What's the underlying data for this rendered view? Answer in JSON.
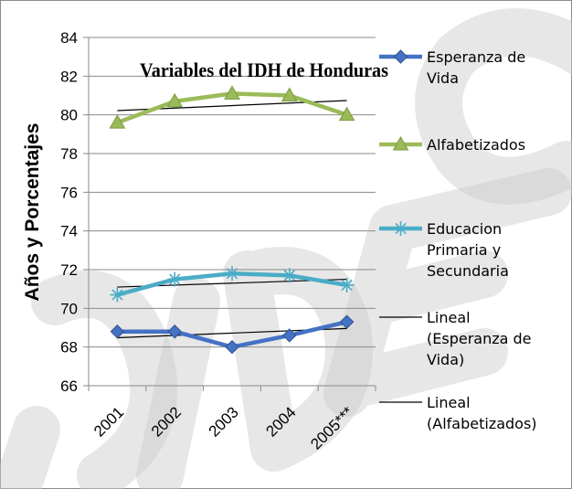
{
  "chart_data": {
    "type": "line",
    "title": "Variables del IDH de Honduras",
    "ylabel": "Años y Porcentajes",
    "xlabel": "",
    "categories": [
      "2001",
      "2002",
      "2003",
      "2004",
      "2005***"
    ],
    "ylim": [
      66,
      84
    ],
    "yticks": [
      66,
      68,
      70,
      72,
      74,
      76,
      78,
      80,
      82,
      84
    ],
    "grid": true,
    "legend_position": "right",
    "series": [
      {
        "name": "Esperanza de Vida",
        "values": [
          68.8,
          68.8,
          68.0,
          68.6,
          69.3
        ],
        "color": "#4472c4",
        "marker": "diamond"
      },
      {
        "name": "Alfabetizados",
        "values": [
          79.6,
          80.7,
          81.1,
          81.0,
          80.0
        ],
        "color": "#9bbb59",
        "marker": "triangle"
      },
      {
        "name": "Educacion Primaria y Secundaria",
        "values": [
          70.7,
          71.5,
          71.8,
          71.7,
          71.2
        ],
        "color": "#4bacc6",
        "marker": "star"
      }
    ],
    "trendlines": [
      {
        "name": "Lineal (Esperanza de Vida)",
        "values": [
          68.48,
          68.6,
          68.72,
          68.84,
          68.96
        ],
        "color": "#000000"
      },
      {
        "name": "Lineal (Alfabetizados)",
        "values": [
          80.22,
          80.35,
          80.48,
          80.61,
          80.74
        ],
        "color": "#000000"
      }
    ],
    "extra_trend": {
      "values": [
        71.1,
        71.2,
        71.3,
        71.4,
        71.5
      ],
      "color": "#000000"
    }
  },
  "legend": [
    {
      "lines": [
        "Esperanza de",
        "Vida"
      ],
      "kind": "series",
      "color": "#4472c4",
      "marker": "diamond"
    },
    {
      "lines": [
        "Alfabetizados"
      ],
      "kind": "series",
      "color": "#9bbb59",
      "marker": "triangle"
    },
    {
      "lines": [
        "Educacion",
        "Primaria y",
        "Secundaria"
      ],
      "kind": "series",
      "color": "#4bacc6",
      "marker": "star"
    },
    {
      "lines": [
        "Lineal",
        "(Esperanza de",
        "Vida)"
      ],
      "kind": "trend",
      "color": "#000000",
      "marker": "none"
    },
    {
      "lines": [
        "Lineal",
        "(Alfabetizados)"
      ],
      "kind": "trend",
      "color": "#000000",
      "marker": "none"
    }
  ]
}
